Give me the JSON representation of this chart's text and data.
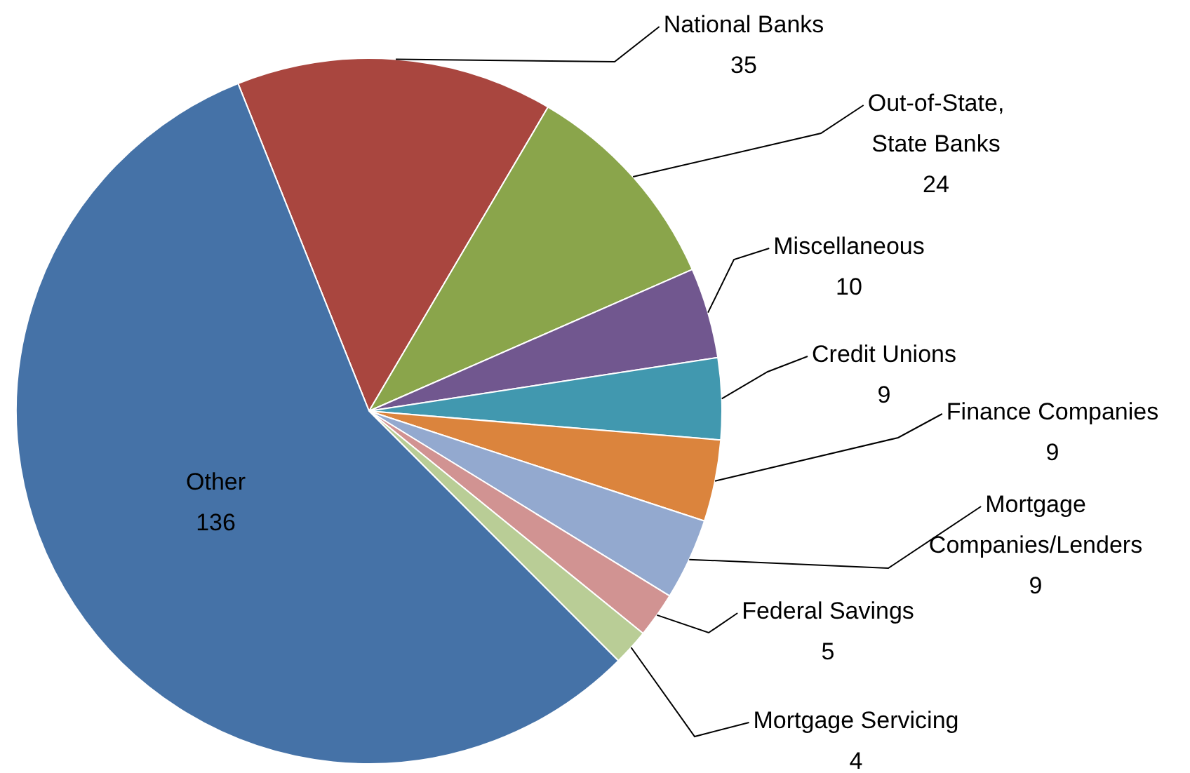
{
  "chart_data": {
    "type": "pie",
    "categories": [
      "National Banks",
      "Out-of-State, State Banks",
      "Miscellaneous",
      "Credit Unions",
      "Finance Companies",
      "Mortgage Companies/Lenders",
      "Federal Savings",
      "Mortgage Servicing",
      "Other"
    ],
    "values": [
      35,
      24,
      10,
      9,
      9,
      9,
      5,
      4,
      136
    ],
    "colors": [
      "#a9463f",
      "#8aa54b",
      "#71578f",
      "#4198af",
      "#db843d",
      "#93a9cf",
      "#d19392",
      "#b9cd96",
      "#4572a7"
    ],
    "data_labels": true,
    "legend": false
  }
}
